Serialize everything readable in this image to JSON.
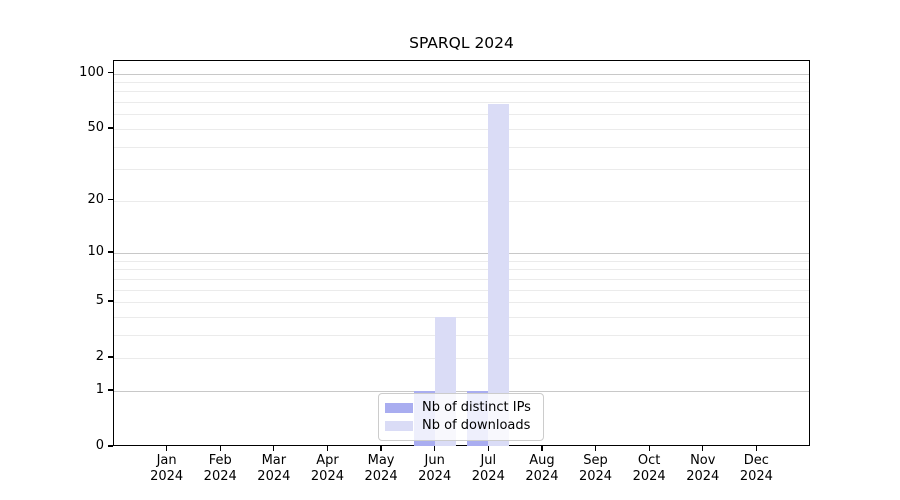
{
  "chart_data": {
    "type": "bar",
    "title": "SPARQL 2024",
    "categories": [
      "Jan",
      "Feb",
      "Mar",
      "Apr",
      "May",
      "Jun",
      "Jul",
      "Aug",
      "Sep",
      "Oct",
      "Nov",
      "Dec"
    ],
    "x_tick_year": "2024",
    "series": [
      {
        "name": "Nb of distinct IPs",
        "color": "#a9adf0",
        "values": [
          0,
          0,
          0,
          0,
          0,
          1,
          1,
          0,
          0,
          0,
          0,
          0
        ]
      },
      {
        "name": "Nb of downloads",
        "color": "#dadcf6",
        "values": [
          0,
          0,
          0,
          0,
          0,
          4,
          68,
          0,
          0,
          0,
          0,
          0
        ]
      }
    ],
    "yscale": "log1p",
    "ylim": [
      0,
      117
    ],
    "y_tick_values": [
      0,
      1,
      2,
      5,
      10,
      20,
      50,
      100
    ],
    "y_tick_labels": [
      "0",
      "1",
      "2",
      "5",
      "10",
      "20",
      "50",
      "100"
    ],
    "grid_major_values": [
      1,
      10,
      100
    ],
    "grid_minor_values": [
      2,
      3,
      4,
      5,
      6,
      7,
      8,
      9,
      20,
      30,
      40,
      50,
      60,
      70,
      80,
      90
    ],
    "legend_position": "lower center",
    "grid": "horizontal only",
    "colors": {
      "grid_major": "#c8c8c8",
      "grid_minor": "#ebebeb",
      "axis": "#000000",
      "background": "#ffffff",
      "legend_border": "#cccccc"
    }
  }
}
